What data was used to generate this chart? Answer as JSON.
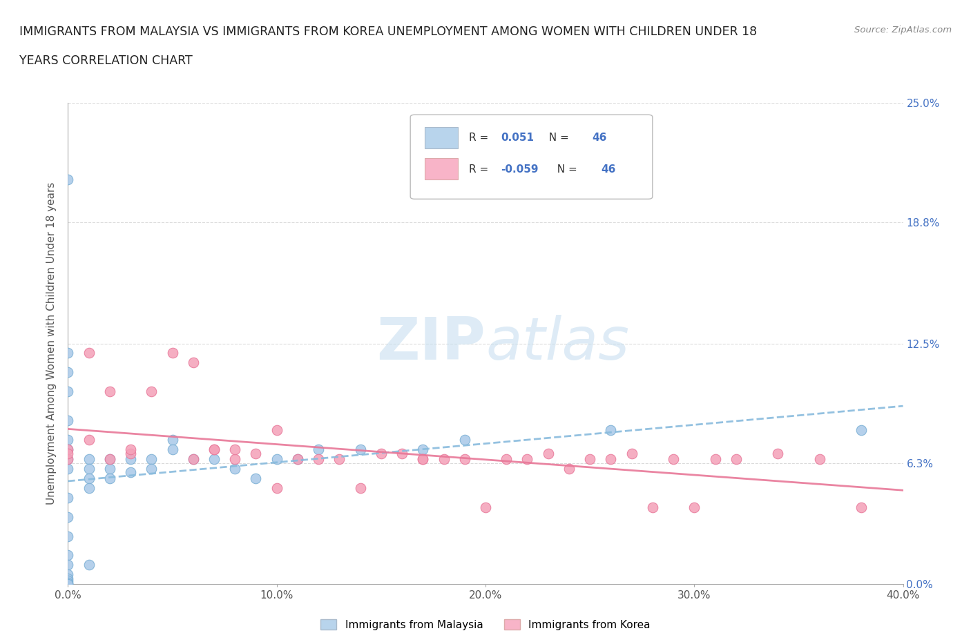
{
  "title_line1": "IMMIGRANTS FROM MALAYSIA VS IMMIGRANTS FROM KOREA UNEMPLOYMENT AMONG WOMEN WITH CHILDREN UNDER 18",
  "title_line2": "YEARS CORRELATION CHART",
  "source": "Source: ZipAtlas.com",
  "xlabel_ticks": [
    "0.0%",
    "10.0%",
    "20.0%",
    "30.0%",
    "40.0%"
  ],
  "ylabel_ticks_right": [
    "0.0%",
    "6.3%",
    "12.5%",
    "18.8%",
    "25.0%"
  ],
  "xlim": [
    0,
    0.4
  ],
  "ylim": [
    0,
    0.25
  ],
  "ytick_vals": [
    0.0,
    0.063,
    0.125,
    0.188,
    0.25
  ],
  "xtick_vals": [
    0.0,
    0.1,
    0.2,
    0.3,
    0.4
  ],
  "R_malaysia": "0.051",
  "N_malaysia": "46",
  "R_korea": "-0.059",
  "N_korea": "46",
  "malaysia_face": "#a8c8e8",
  "malaysia_edge": "#7aafd4",
  "korea_face": "#f4a0b8",
  "korea_edge": "#e8789a",
  "trendline_malaysia_color": "#88bbdd",
  "trendline_korea_color": "#e87898",
  "legend_box_malaysia": "#b8d4ec",
  "legend_box_korea": "#f8b4c8",
  "watermark_color": "#c8dff0",
  "ylabel": "Unemployment Among Women with Children Under 18 years",
  "malaysia_x": [
    0.0,
    0.0,
    0.0,
    0.0,
    0.0,
    0.0,
    0.0,
    0.0,
    0.0,
    0.0,
    0.0,
    0.0,
    0.0,
    0.0,
    0.0,
    0.0,
    0.0,
    0.0,
    0.0,
    0.0,
    0.01,
    0.01,
    0.01,
    0.01,
    0.01,
    0.02,
    0.02,
    0.02,
    0.03,
    0.03,
    0.04,
    0.04,
    0.05,
    0.05,
    0.06,
    0.07,
    0.08,
    0.09,
    0.1,
    0.11,
    0.12,
    0.14,
    0.17,
    0.19,
    0.26,
    0.38
  ],
  "malaysia_y": [
    0.21,
    0.12,
    0.11,
    0.1,
    0.085,
    0.075,
    0.07,
    0.065,
    0.06,
    0.045,
    0.035,
    0.025,
    0.015,
    0.01,
    0.005,
    0.003,
    0.002,
    0.001,
    0.0,
    0.0,
    0.065,
    0.06,
    0.055,
    0.05,
    0.01,
    0.065,
    0.06,
    0.055,
    0.065,
    0.058,
    0.065,
    0.06,
    0.075,
    0.07,
    0.065,
    0.065,
    0.06,
    0.055,
    0.065,
    0.065,
    0.07,
    0.07,
    0.07,
    0.075,
    0.08,
    0.08
  ],
  "korea_x": [
    0.0,
    0.0,
    0.0,
    0.01,
    0.01,
    0.02,
    0.02,
    0.03,
    0.03,
    0.04,
    0.05,
    0.06,
    0.06,
    0.07,
    0.07,
    0.08,
    0.08,
    0.09,
    0.1,
    0.1,
    0.11,
    0.12,
    0.13,
    0.14,
    0.15,
    0.16,
    0.17,
    0.17,
    0.18,
    0.19,
    0.2,
    0.21,
    0.22,
    0.23,
    0.24,
    0.25,
    0.26,
    0.27,
    0.28,
    0.29,
    0.3,
    0.31,
    0.32,
    0.34,
    0.36,
    0.38
  ],
  "korea_y": [
    0.065,
    0.07,
    0.068,
    0.075,
    0.12,
    0.065,
    0.1,
    0.068,
    0.07,
    0.1,
    0.12,
    0.065,
    0.115,
    0.07,
    0.07,
    0.065,
    0.07,
    0.068,
    0.05,
    0.08,
    0.065,
    0.065,
    0.065,
    0.05,
    0.068,
    0.068,
    0.065,
    0.065,
    0.065,
    0.065,
    0.04,
    0.065,
    0.065,
    0.068,
    0.06,
    0.065,
    0.065,
    0.068,
    0.04,
    0.065,
    0.04,
    0.065,
    0.065,
    0.068,
    0.065,
    0.04
  ]
}
